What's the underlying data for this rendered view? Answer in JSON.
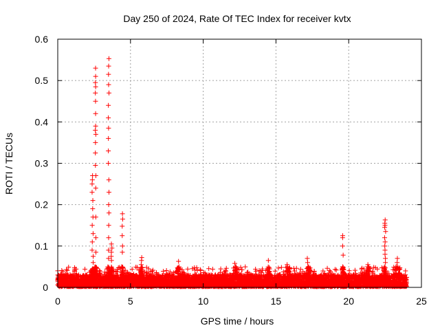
{
  "chart_data": {
    "type": "scatter",
    "title": "Day 250 of 2024, Rate Of TEC Index for receiver kvtx",
    "xlabel": "GPS time / hours",
    "ylabel": "ROTI / TECUs",
    "xlim": [
      0,
      25
    ],
    "ylim": [
      0,
      0.6
    ],
    "xticks": [
      "0",
      "5",
      "10",
      "15",
      "20",
      "25"
    ],
    "yticks": [
      "0",
      "0.1",
      "0.2",
      "0.3",
      "0.4",
      "0.5",
      "0.6"
    ],
    "grid": true,
    "marker": "plus",
    "marker_color": "#ff0000",
    "series": [
      {
        "name": "ROTI",
        "baseline": {
          "x_start": 0.0,
          "x_end": 24.0,
          "y_min": 0.002,
          "y_max": 0.03
        },
        "bursts": [
          {
            "x_center": 2.4,
            "x_spread": 0.08,
            "y_values": [
              0.06,
              0.075,
              0.09,
              0.11,
              0.13,
              0.15,
              0.17,
              0.19,
              0.21,
              0.23,
              0.25,
              0.26,
              0.27
            ]
          },
          {
            "x_center": 2.6,
            "x_spread": 0.05,
            "y_values": [
              0.085,
              0.12,
              0.17,
              0.24,
              0.27,
              0.295,
              0.325,
              0.35,
              0.37,
              0.38,
              0.39,
              0.42,
              0.45,
              0.47,
              0.485,
              0.495,
              0.51,
              0.53
            ]
          },
          {
            "x_center": 3.5,
            "x_spread": 0.05,
            "y_values": [
              0.07,
              0.09,
              0.12,
              0.15,
              0.18,
              0.2,
              0.23,
              0.26,
              0.3,
              0.33,
              0.36,
              0.385,
              0.41,
              0.44,
              0.47,
              0.49,
              0.515,
              0.535,
              0.553
            ]
          },
          {
            "x_center": 3.7,
            "x_spread": 0.05,
            "y_values": [
              0.065,
              0.075,
              0.085,
              0.095,
              0.105
            ]
          },
          {
            "x_center": 4.45,
            "x_spread": 0.04,
            "y_values": [
              0.085,
              0.1,
              0.125,
              0.148,
              0.165,
              0.178
            ]
          },
          {
            "x_center": 5.75,
            "x_spread": 0.06,
            "y_values": [
              0.04,
              0.055,
              0.065,
              0.072
            ]
          },
          {
            "x_center": 8.3,
            "x_spread": 0.05,
            "y_values": [
              0.045,
              0.063
            ]
          },
          {
            "x_center": 12.2,
            "x_spread": 0.1,
            "y_values": [
              0.04,
              0.05,
              0.058
            ]
          },
          {
            "x_center": 14.5,
            "x_spread": 0.05,
            "y_values": [
              0.065
            ]
          },
          {
            "x_center": 15.8,
            "x_spread": 0.1,
            "y_values": [
              0.04,
              0.05,
              0.055
            ]
          },
          {
            "x_center": 17.2,
            "x_spread": 0.1,
            "y_values": [
              0.045,
              0.06,
              0.07
            ]
          },
          {
            "x_center": 19.6,
            "x_spread": 0.04,
            "y_values": [
              0.078,
              0.1,
              0.12,
              0.125
            ]
          },
          {
            "x_center": 21.3,
            "x_spread": 0.1,
            "y_values": [
              0.04,
              0.05,
              0.055
            ]
          },
          {
            "x_center": 22.5,
            "x_spread": 0.08,
            "y_values": [
              0.06,
              0.07,
              0.08,
              0.09,
              0.1,
              0.11,
              0.12,
              0.135,
              0.145,
              0.15,
              0.155,
              0.163
            ]
          },
          {
            "x_center": 23.3,
            "x_spread": 0.15,
            "y_values": [
              0.04,
              0.05,
              0.06,
              0.07
            ]
          }
        ]
      }
    ]
  }
}
